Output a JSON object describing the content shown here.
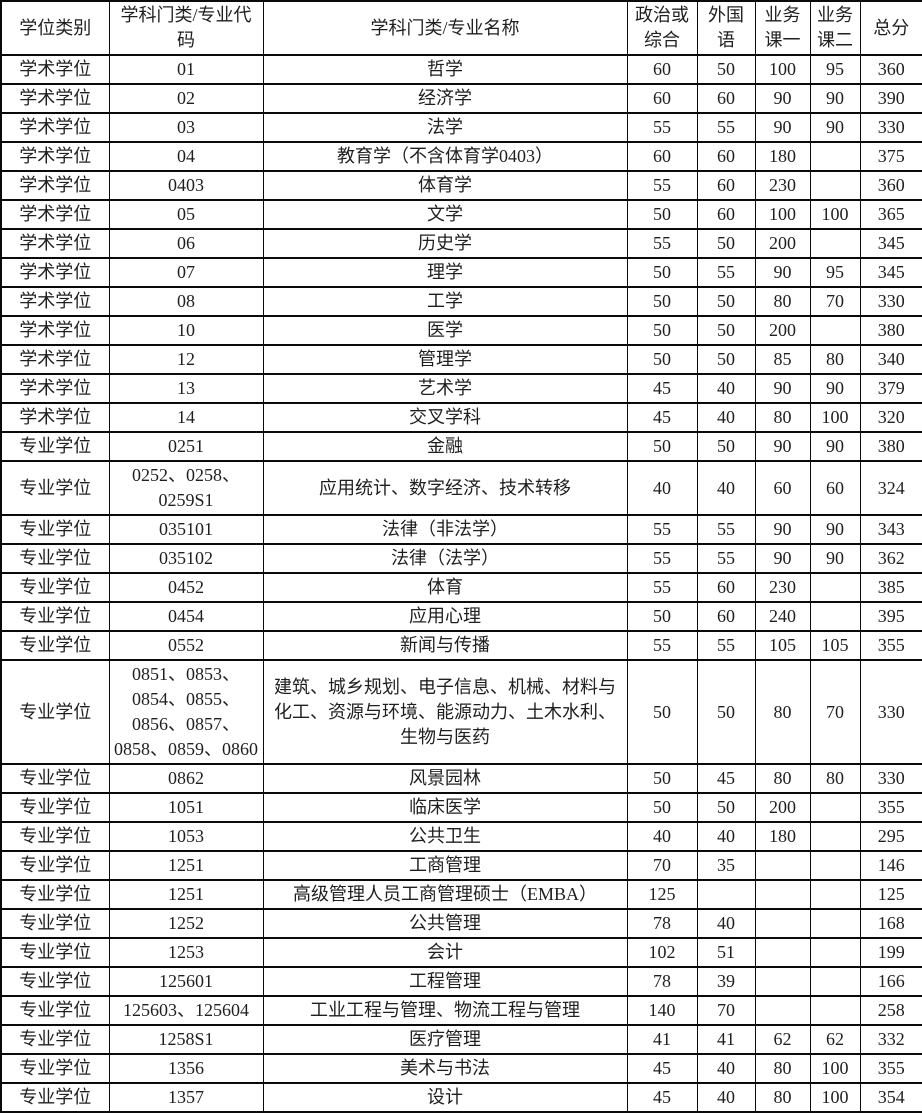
{
  "table": {
    "column_keys": [
      "category",
      "code",
      "name",
      "politics",
      "foreign",
      "course1",
      "course2",
      "total"
    ],
    "headers": {
      "category": "学位类别",
      "code": "学科门类/专业代码",
      "name": "学科门类/专业名称",
      "politics": "政治或综合",
      "foreign": "外国语",
      "course1": "业务课一",
      "course2": "业务课二",
      "total": "总分"
    },
    "rows": [
      {
        "category": "学术学位",
        "code": "01",
        "name": "哲学",
        "politics": "60",
        "foreign": "50",
        "course1": "100",
        "course2": "95",
        "total": "360"
      },
      {
        "category": "学术学位",
        "code": "02",
        "name": "经济学",
        "politics": "60",
        "foreign": "60",
        "course1": "90",
        "course2": "90",
        "total": "390"
      },
      {
        "category": "学术学位",
        "code": "03",
        "name": "法学",
        "politics": "55",
        "foreign": "55",
        "course1": "90",
        "course2": "90",
        "total": "330"
      },
      {
        "category": "学术学位",
        "code": "04",
        "name": "教育学（不含体育学0403）",
        "politics": "60",
        "foreign": "60",
        "course1": "180",
        "course2": "",
        "total": "375"
      },
      {
        "category": "学术学位",
        "code": "0403",
        "name": "体育学",
        "politics": "55",
        "foreign": "60",
        "course1": "230",
        "course2": "",
        "total": "360"
      },
      {
        "category": "学术学位",
        "code": "05",
        "name": "文学",
        "politics": "50",
        "foreign": "60",
        "course1": "100",
        "course2": "100",
        "total": "365"
      },
      {
        "category": "学术学位",
        "code": "06",
        "name": "历史学",
        "politics": "55",
        "foreign": "50",
        "course1": "200",
        "course2": "",
        "total": "345"
      },
      {
        "category": "学术学位",
        "code": "07",
        "name": "理学",
        "politics": "50",
        "foreign": "55",
        "course1": "90",
        "course2": "95",
        "total": "345"
      },
      {
        "category": "学术学位",
        "code": "08",
        "name": "工学",
        "politics": "50",
        "foreign": "50",
        "course1": "80",
        "course2": "70",
        "total": "330"
      },
      {
        "category": "学术学位",
        "code": "10",
        "name": "医学",
        "politics": "50",
        "foreign": "50",
        "course1": "200",
        "course2": "",
        "total": "380"
      },
      {
        "category": "学术学位",
        "code": "12",
        "name": "管理学",
        "politics": "50",
        "foreign": "50",
        "course1": "85",
        "course2": "80",
        "total": "340"
      },
      {
        "category": "学术学位",
        "code": "13",
        "name": "艺术学",
        "politics": "45",
        "foreign": "40",
        "course1": "90",
        "course2": "90",
        "total": "379"
      },
      {
        "category": "学术学位",
        "code": "14",
        "name": "交叉学科",
        "politics": "45",
        "foreign": "40",
        "course1": "80",
        "course2": "100",
        "total": "320"
      },
      {
        "category": "专业学位",
        "code": "0251",
        "name": "金融",
        "politics": "50",
        "foreign": "50",
        "course1": "90",
        "course2": "90",
        "total": "380"
      },
      {
        "category": "专业学位",
        "code": "0252、0258、0259S1",
        "name": "应用统计、数字经济、技术转移",
        "politics": "40",
        "foreign": "40",
        "course1": "60",
        "course2": "60",
        "total": "324"
      },
      {
        "category": "专业学位",
        "code": "035101",
        "name": "法律（非法学）",
        "politics": "55",
        "foreign": "55",
        "course1": "90",
        "course2": "90",
        "total": "343"
      },
      {
        "category": "专业学位",
        "code": "035102",
        "name": "法律（法学）",
        "politics": "55",
        "foreign": "55",
        "course1": "90",
        "course2": "90",
        "total": "362"
      },
      {
        "category": "专业学位",
        "code": "0452",
        "name": "体育",
        "politics": "55",
        "foreign": "60",
        "course1": "230",
        "course2": "",
        "total": "385"
      },
      {
        "category": "专业学位",
        "code": "0454",
        "name": "应用心理",
        "politics": "50",
        "foreign": "60",
        "course1": "240",
        "course2": "",
        "total": "395"
      },
      {
        "category": "专业学位",
        "code": "0552",
        "name": "新闻与传播",
        "politics": "55",
        "foreign": "55",
        "course1": "105",
        "course2": "105",
        "total": "355"
      },
      {
        "category": "专业学位",
        "code": "0851、0853、0854、0855、0856、0857、0858、0859、0860",
        "name": "建筑、城乡规划、电子信息、机械、材料与化工、资源与环境、能源动力、土木水利、生物与医药",
        "politics": "50",
        "foreign": "50",
        "course1": "80",
        "course2": "70",
        "total": "330"
      },
      {
        "category": "专业学位",
        "code": "0862",
        "name": "风景园林",
        "politics": "50",
        "foreign": "45",
        "course1": "80",
        "course2": "80",
        "total": "330"
      },
      {
        "category": "专业学位",
        "code": "1051",
        "name": "临床医学",
        "politics": "50",
        "foreign": "50",
        "course1": "200",
        "course2": "",
        "total": "355"
      },
      {
        "category": "专业学位",
        "code": "1053",
        "name": "公共卫生",
        "politics": "40",
        "foreign": "40",
        "course1": "180",
        "course2": "",
        "total": "295"
      },
      {
        "category": "专业学位",
        "code": "1251",
        "name": "工商管理",
        "politics": "70",
        "foreign": "35",
        "course1": "",
        "course2": "",
        "total": "146"
      },
      {
        "category": "专业学位",
        "code": "1251",
        "name": "高级管理人员工商管理硕士（EMBA）",
        "politics": "125",
        "foreign": "",
        "course1": "",
        "course2": "",
        "total": "125"
      },
      {
        "category": "专业学位",
        "code": "1252",
        "name": "公共管理",
        "politics": "78",
        "foreign": "40",
        "course1": "",
        "course2": "",
        "total": "168"
      },
      {
        "category": "专业学位",
        "code": "1253",
        "name": "会计",
        "politics": "102",
        "foreign": "51",
        "course1": "",
        "course2": "",
        "total": "199"
      },
      {
        "category": "专业学位",
        "code": "125601",
        "name": "工程管理",
        "politics": "78",
        "foreign": "39",
        "course1": "",
        "course2": "",
        "total": "166"
      },
      {
        "category": "专业学位",
        "code": "125603、125604",
        "name": "工业工程与管理、物流工程与管理",
        "politics": "140",
        "foreign": "70",
        "course1": "",
        "course2": "",
        "total": "258"
      },
      {
        "category": "专业学位",
        "code": "1258S1",
        "name": "医疗管理",
        "politics": "41",
        "foreign": "41",
        "course1": "62",
        "course2": "62",
        "total": "332"
      },
      {
        "category": "专业学位",
        "code": "1356",
        "name": "美术与书法",
        "politics": "45",
        "foreign": "40",
        "course1": "80",
        "course2": "100",
        "total": "355"
      },
      {
        "category": "专业学位",
        "code": "1357",
        "name": "设计",
        "politics": "45",
        "foreign": "40",
        "course1": "80",
        "course2": "100",
        "total": "354"
      }
    ]
  }
}
